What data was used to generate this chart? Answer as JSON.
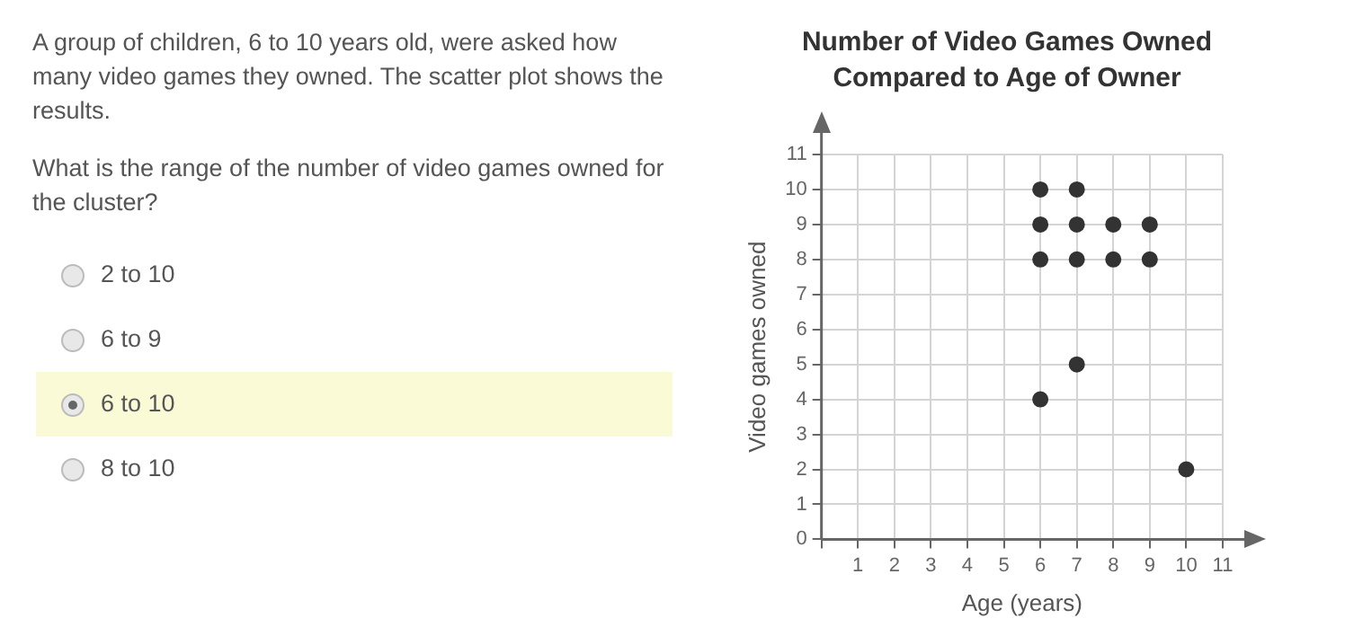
{
  "chart_data": {
    "type": "scatter",
    "title": "Number of Video Games Owned Compared to Age of Owner",
    "xlabel": "Age (years)",
    "ylabel": "Video games owned",
    "x": [
      6,
      7,
      6,
      7,
      8,
      9,
      6,
      7,
      8,
      9,
      7,
      6,
      10
    ],
    "values": [
      10,
      10,
      9,
      9,
      9,
      9,
      8,
      8,
      8,
      8,
      5,
      4,
      2
    ],
    "color": "#333333",
    "marker": "circle",
    "grid": true,
    "legend": false,
    "xlim": [
      0,
      11
    ],
    "xticks": [
      {
        "value": 0,
        "label": null
      },
      1,
      2,
      3,
      4,
      5,
      6,
      7,
      8,
      9,
      10,
      11
    ],
    "ylim": [
      0,
      11
    ],
    "yticks": [
      0,
      1,
      2,
      3,
      4,
      5,
      6,
      7,
      8,
      9,
      10,
      11
    ],
    "annotations": [
      "A group of children, 6 to 10 years old, were asked how many video games they owned. The scatter plot shows the results.",
      "What is the range of the number of video games owned for the cluster?",
      "2 to 10",
      "6 to 9",
      "6 to 10",
      "8 to 10"
    ]
  }
}
